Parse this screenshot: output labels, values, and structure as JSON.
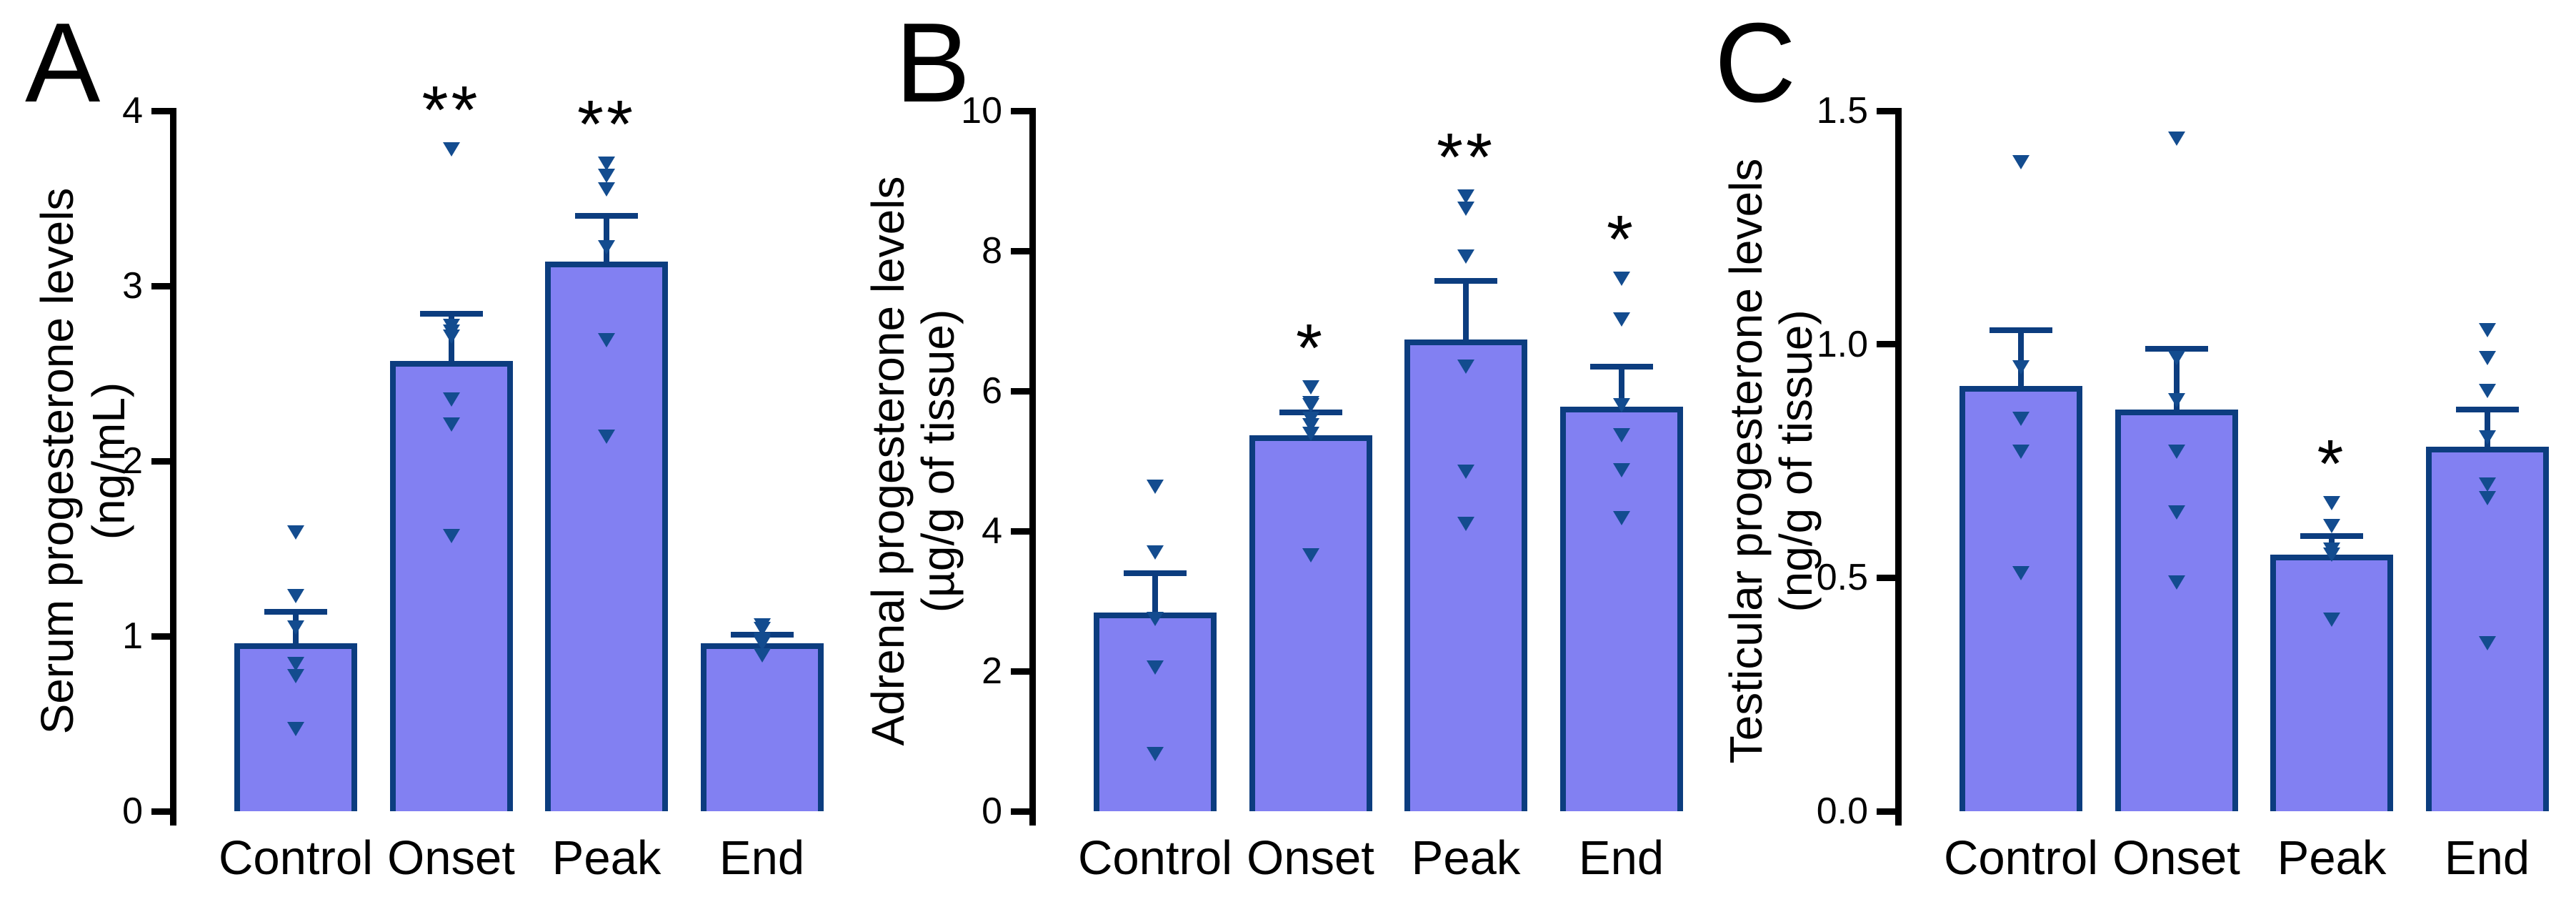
{
  "colors": {
    "bar_fill": "#8280f2",
    "bar_stroke": "#0c3d7f",
    "marker": "#134c8f",
    "text": "#000000"
  },
  "chart_data": [
    {
      "type": "bar",
      "panel_letter": "A",
      "ylabel_line1": "Serum progesterone levels",
      "ylabel_line2": "(ng/mL)",
      "ylim": [
        0,
        4
      ],
      "ytick_values": [
        0,
        1,
        2,
        3,
        4
      ],
      "ytick_labels": [
        "0",
        "1",
        "2",
        "3",
        "4"
      ],
      "categories": [
        "Control",
        "Onset",
        "Peak",
        "End"
      ],
      "legend": "none",
      "grid": false,
      "bars": [
        {
          "category": "Control",
          "mean": 0.96,
          "sem_top": 1.14,
          "significance": "",
          "points": [
            1.59,
            1.23,
            1.05,
            0.84,
            0.77,
            0.47
          ]
        },
        {
          "category": "Onset",
          "mean": 2.57,
          "sem_top": 2.84,
          "significance": "**",
          "points": [
            3.78,
            2.77,
            2.74,
            2.71,
            2.35,
            2.21,
            1.57
          ]
        },
        {
          "category": "Peak",
          "mean": 3.14,
          "sem_top": 3.4,
          "significance": "**",
          "points": [
            3.7,
            3.63,
            3.55,
            3.22,
            2.69,
            2.14
          ]
        },
        {
          "category": "End",
          "mean": 0.96,
          "sem_top": 1.01,
          "significance": "",
          "points": [
            1.06,
            1.04,
            0.98,
            0.97,
            0.96,
            0.89
          ]
        }
      ]
    },
    {
      "type": "bar",
      "panel_letter": "B",
      "ylabel_line1": "Adrenal progesterone levels",
      "ylabel_line2": "(µg/g of tissue)",
      "ylim": [
        0,
        10
      ],
      "ytick_values": [
        0,
        2,
        4,
        6,
        8,
        10
      ],
      "ytick_labels": [
        "0",
        "2",
        "4",
        "6",
        "8",
        "10"
      ],
      "categories": [
        "Control",
        "Onset",
        "Peak",
        "End"
      ],
      "legend": "none",
      "grid": false,
      "bars": [
        {
          "category": "Control",
          "mean": 2.84,
          "sem_top": 3.4,
          "significance": "",
          "points": [
            4.63,
            3.69,
            2.74,
            2.05,
            0.82
          ]
        },
        {
          "category": "Onset",
          "mean": 5.37,
          "sem_top": 5.69,
          "significance": "*",
          "points": [
            6.05,
            5.83,
            5.8,
            5.6,
            5.51,
            5.39,
            3.65
          ]
        },
        {
          "category": "Peak",
          "mean": 6.73,
          "sem_top": 7.57,
          "significance": "**",
          "points": [
            8.78,
            8.6,
            7.92,
            6.35,
            4.85,
            4.1
          ]
        },
        {
          "category": "End",
          "mean": 5.78,
          "sem_top": 6.35,
          "significance": "*",
          "points": [
            7.6,
            7.02,
            5.8,
            5.37,
            4.87,
            4.18
          ]
        }
      ]
    },
    {
      "type": "bar",
      "panel_letter": "C",
      "ylabel_line1": "Testicular progesterone levels",
      "ylabel_line2": "(ng/g of tissue)",
      "ylim": [
        0,
        1.5
      ],
      "ytick_values": [
        0,
        0.5,
        1.0,
        1.5
      ],
      "ytick_labels": [
        "0.0",
        "0.5",
        "1.0",
        "1.5"
      ],
      "categories": [
        "Control",
        "Onset",
        "Peak",
        "End"
      ],
      "legend": "none",
      "grid": false,
      "bars": [
        {
          "category": "Control",
          "mean": 0.91,
          "sem_top": 1.03,
          "significance": "",
          "points": [
            1.39,
            0.95,
            0.84,
            0.77,
            0.51
          ]
        },
        {
          "category": "Onset",
          "mean": 0.86,
          "sem_top": 0.99,
          "significance": "",
          "points": [
            1.44,
            0.97,
            0.88,
            0.77,
            0.64,
            0.49
          ]
        },
        {
          "category": "Peak",
          "mean": 0.55,
          "sem_top": 0.59,
          "significance": "*",
          "points": [
            0.66,
            0.61,
            0.56,
            0.55,
            0.41
          ]
        },
        {
          "category": "End",
          "mean": 0.78,
          "sem_top": 0.86,
          "significance": "",
          "points": [
            1.03,
            0.97,
            0.9,
            0.8,
            0.7,
            0.67,
            0.36
          ]
        }
      ]
    }
  ]
}
